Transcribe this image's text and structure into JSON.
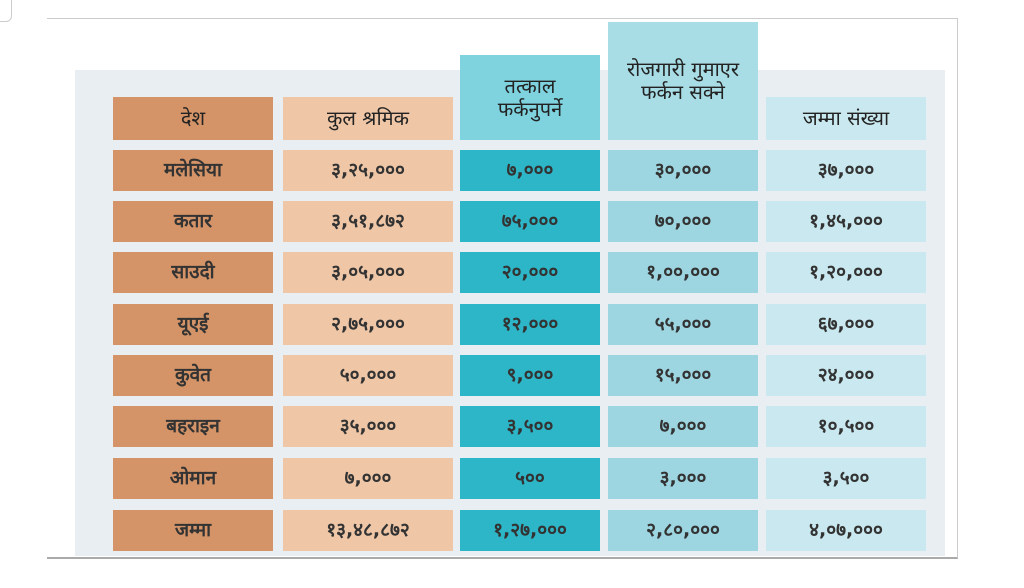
{
  "table": {
    "headers": [
      "देश",
      "कुल श्रमिक",
      "तत्काल फर्कनुपर्ने",
      "रोजगारी गुमाएर फर्कन सक्ने",
      "जम्मा संख्या"
    ],
    "rows": [
      [
        "मलेसिया",
        "३,२५,०००",
        "७,०००",
        "३०,०००",
        "३७,०००"
      ],
      [
        "कतार",
        "३,५१,८७२",
        "७५,०००",
        "७०,०००",
        "१,४५,०००"
      ],
      [
        "साउदी",
        "३,०५,०००",
        "२०,०००",
        "१,००,०००",
        "१,२०,०००"
      ],
      [
        "यूएई",
        "२,७५,०००",
        "१२,०००",
        "५५,०००",
        "६७,०००"
      ],
      [
        "कुवेत",
        "५०,०००",
        "९,०००",
        "१५,०००",
        "२४,०००"
      ],
      [
        "बहराइन",
        "३५,०००",
        "३,५००",
        "७,०००",
        "१०,५००"
      ],
      [
        "ओमान",
        "७,०००",
        "५००",
        "३,०००",
        "३,५००"
      ],
      [
        "जम्मा",
        "१३,४८,८७२",
        "१,२७,०००",
        "२,८०,०००",
        "४,०७,०००"
      ]
    ]
  }
}
